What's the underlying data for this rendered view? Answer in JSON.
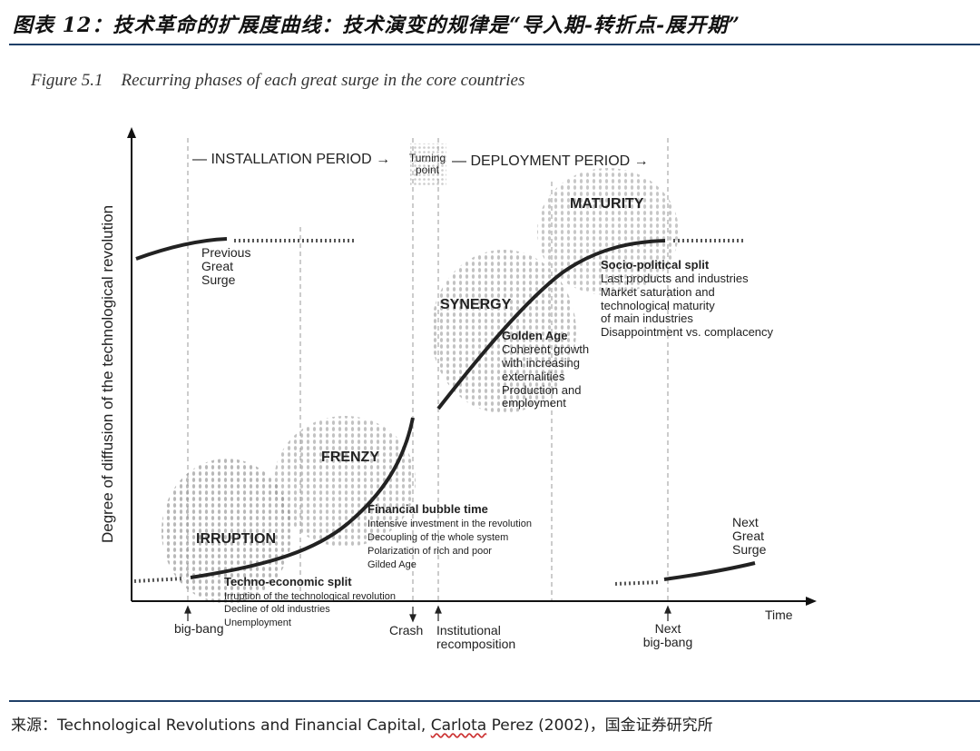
{
  "header": {
    "title": "图表 12：技术革命的扩展度曲线：技术演变的规律是“导入期-转折点-展开期”"
  },
  "figure": {
    "number": "Figure 5.1",
    "caption": "Recurring phases of each great surge in the core countries"
  },
  "axes": {
    "ylabel": "Degree of diffusion of the technological revolution",
    "xlabel": "Time"
  },
  "periods": {
    "installation": "— INSTALLATION PERIOD →",
    "turning_line1": "Turning",
    "turning_line2": "point",
    "deployment": "— DEPLOYMENT PERIOD →"
  },
  "phases": {
    "irruption": "IRRUPTION",
    "frenzy": "FRENZY",
    "synergy": "SYNERGY",
    "maturity": "MATURITY"
  },
  "previous_surge": [
    "Previous",
    "Great",
    "Surge"
  ],
  "next_surge": [
    "Next",
    "Great",
    "Surge"
  ],
  "techno_split": {
    "title": "Techno-economic split",
    "lines": [
      "Irruption of the technological revolution",
      "Decline of old industries",
      "Unemployment"
    ]
  },
  "bubble": {
    "title": "Financial bubble time",
    "lines": [
      "Intensive investment in the revolution",
      "Decoupling of the whole system",
      "Polarization of rich and poor",
      "Gilded Age"
    ]
  },
  "golden": {
    "title": "Golden Age",
    "lines": [
      "Coherent growth",
      "with increasing",
      "externalities",
      "Production and",
      "employment"
    ]
  },
  "socio": {
    "title": "Socio-political split",
    "lines": [
      "Last products and industries",
      "Market saturation and",
      "technological maturity",
      "of main industries",
      "Disappointment vs. complacency"
    ]
  },
  "events": {
    "big_bang": "big-bang",
    "crash": "Crash",
    "institutional": [
      "Institutional",
      "recomposition"
    ],
    "next_big_bang": [
      "Next",
      "big-bang"
    ]
  },
  "footer": {
    "label": "来源：",
    "book": "Technological Revolutions and Financial Capital,",
    "author": "Carlota",
    "rest": "Perez (2002)，国金证券研究所"
  }
}
